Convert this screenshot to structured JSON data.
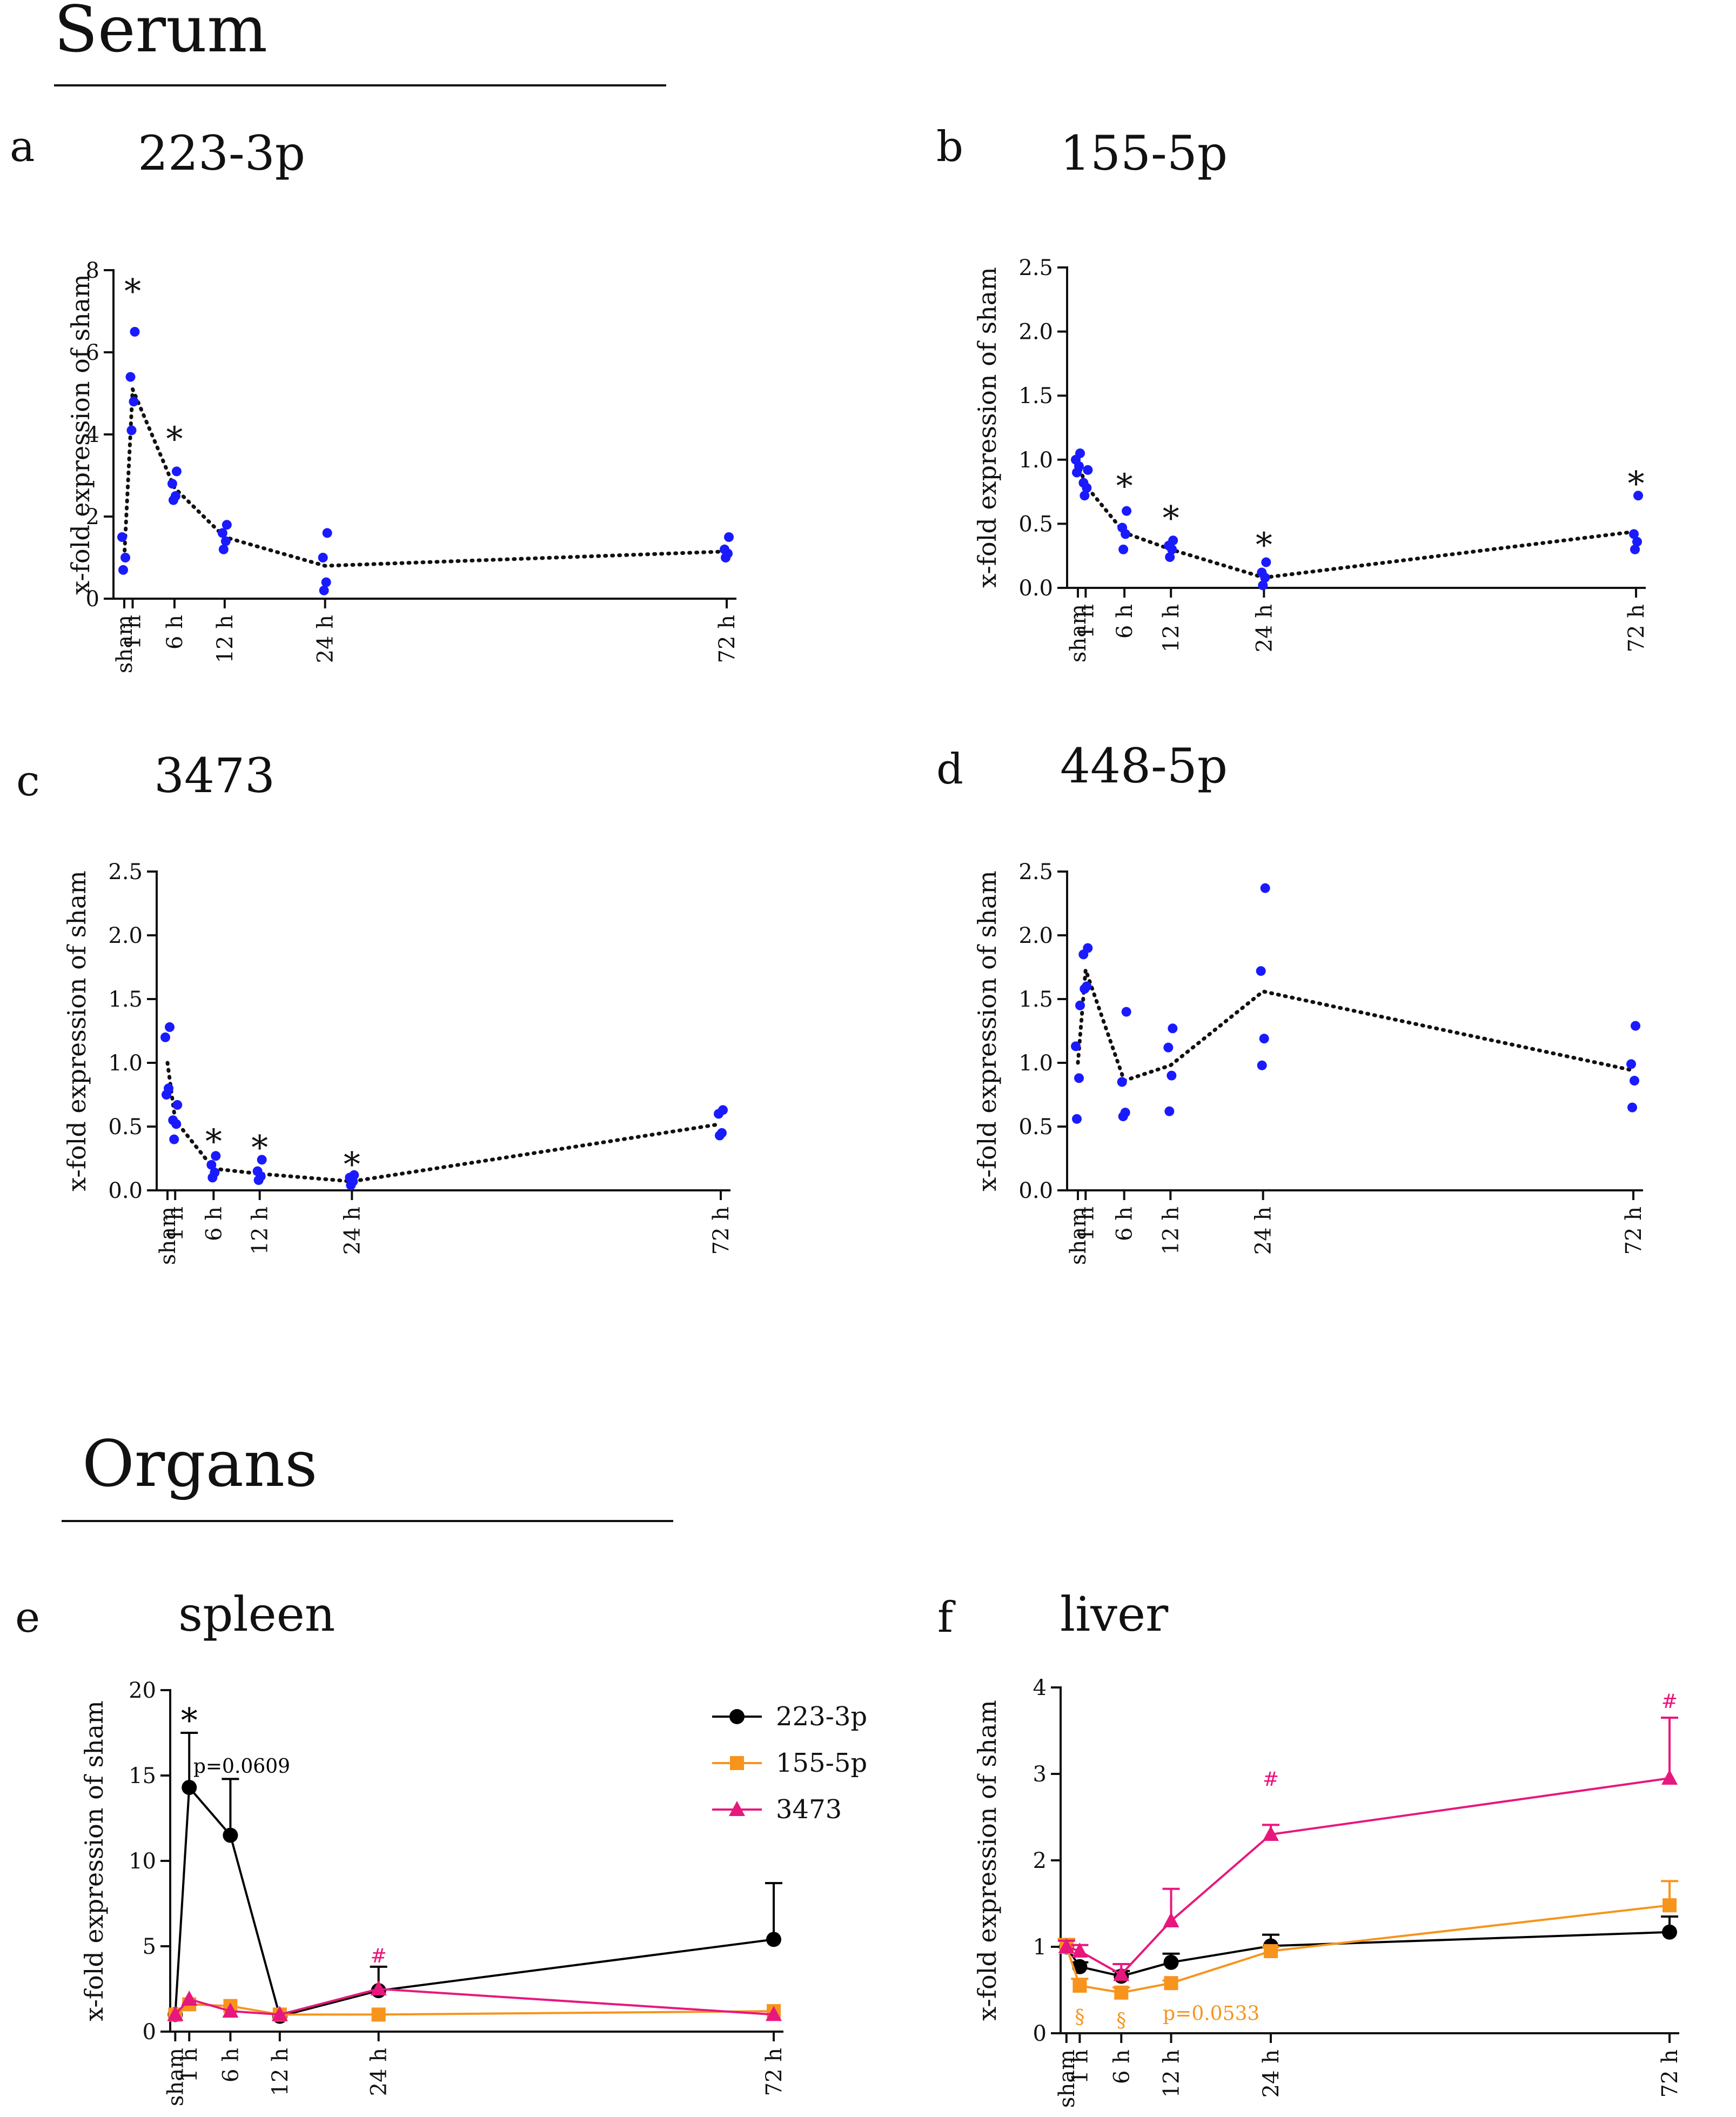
{
  "sections": [
    {
      "title": "Serum"
    },
    {
      "title": "Organs"
    }
  ],
  "x_categories": [
    "sham",
    "1 h",
    "6 h",
    "12 h",
    "24 h",
    "72 h"
  ],
  "x_hours": [
    0,
    1,
    6,
    12,
    24,
    72
  ],
  "colors": {
    "blue": "#1a1aff",
    "black": "#000000",
    "orange": "#f7941d",
    "pink": "#e8177d",
    "axis": "#111111"
  },
  "chart_data": [
    {
      "id": "a",
      "panel_letter": "a",
      "title": "223-3p",
      "type": "scatter",
      "ylabel": "x-fold expression of sham",
      "ylim": [
        0,
        8
      ],
      "yticks": [
        "0",
        "2",
        "4",
        "6",
        "8"
      ],
      "points": [
        {
          "x": 0,
          "values": [
            0.7,
            1.0,
            1.5
          ]
        },
        {
          "x": 1,
          "values": [
            4.1,
            4.8,
            5.4,
            6.5
          ]
        },
        {
          "x": 6,
          "values": [
            2.4,
            2.5,
            2.8,
            3.1
          ]
        },
        {
          "x": 12,
          "values": [
            1.2,
            1.4,
            1.6,
            1.8
          ]
        },
        {
          "x": 24,
          "values": [
            0.2,
            0.4,
            1.0,
            1.6
          ]
        },
        {
          "x": 72,
          "values": [
            1.0,
            1.1,
            1.2,
            1.5
          ]
        }
      ],
      "mean_line": [
        1.0,
        5.1,
        2.7,
        1.5,
        0.8,
        1.15
      ],
      "annotations": [
        {
          "x": 1,
          "y": 7.6,
          "text": "*"
        },
        {
          "x": 6,
          "y": 4.0,
          "text": "*"
        }
      ]
    },
    {
      "id": "b",
      "panel_letter": "b",
      "title": "155-5p",
      "type": "scatter",
      "ylabel": "x-fold expression of sham",
      "ylim": [
        0,
        2.5
      ],
      "yticks": [
        "0.0",
        "0.5",
        "1.0",
        "1.5",
        "2.0",
        "2.5"
      ],
      "points": [
        {
          "x": 0,
          "values": [
            0.9,
            0.95,
            1.0,
            1.05
          ]
        },
        {
          "x": 1,
          "values": [
            0.72,
            0.78,
            0.82,
            0.92
          ]
        },
        {
          "x": 6,
          "values": [
            0.3,
            0.42,
            0.47,
            0.6
          ]
        },
        {
          "x": 12,
          "values": [
            0.24,
            0.3,
            0.33,
            0.37
          ]
        },
        {
          "x": 24,
          "values": [
            0.02,
            0.08,
            0.12,
            0.2
          ]
        },
        {
          "x": 72,
          "values": [
            0.3,
            0.36,
            0.42,
            0.72
          ]
        }
      ],
      "mean_line": [
        0.98,
        0.8,
        0.43,
        0.3,
        0.08,
        0.44
      ],
      "annotations": [
        {
          "x": 6,
          "y": 0.83,
          "text": "*"
        },
        {
          "x": 12,
          "y": 0.58,
          "text": "*"
        },
        {
          "x": 24,
          "y": 0.37,
          "text": "*"
        },
        {
          "x": 72,
          "y": 0.85,
          "text": "*"
        }
      ]
    },
    {
      "id": "c",
      "panel_letter": "c",
      "title": "3473",
      "type": "scatter",
      "ylabel": "x-fold expression of sham",
      "ylim": [
        0,
        2.5
      ],
      "yticks": [
        "0.0",
        "0.5",
        "1.0",
        "1.5",
        "2.0",
        "2.5"
      ],
      "points": [
        {
          "x": 0,
          "values": [
            0.75,
            0.8,
            1.2,
            1.28
          ]
        },
        {
          "x": 1,
          "values": [
            0.4,
            0.52,
            0.55,
            0.67
          ]
        },
        {
          "x": 6,
          "values": [
            0.1,
            0.14,
            0.2,
            0.27
          ]
        },
        {
          "x": 12,
          "values": [
            0.08,
            0.11,
            0.15,
            0.24
          ]
        },
        {
          "x": 24,
          "values": [
            0.04,
            0.07,
            0.1,
            0.12
          ]
        },
        {
          "x": 72,
          "values": [
            0.43,
            0.45,
            0.6,
            0.63
          ]
        }
      ],
      "mean_line": [
        1.0,
        0.55,
        0.17,
        0.13,
        0.07,
        0.52
      ],
      "annotations": [
        {
          "x": 6,
          "y": 0.42,
          "text": "*"
        },
        {
          "x": 12,
          "y": 0.37,
          "text": "*"
        },
        {
          "x": 24,
          "y": 0.24,
          "text": "*"
        }
      ]
    },
    {
      "id": "d",
      "panel_letter": "d",
      "title": "448-5p",
      "type": "scatter",
      "ylabel": "x-fold expression of sham",
      "ylim": [
        0,
        2.5
      ],
      "yticks": [
        "0.0",
        "0.5",
        "1.0",
        "1.5",
        "2.0",
        "2.5"
      ],
      "points": [
        {
          "x": 0,
          "values": [
            0.56,
            0.88,
            1.13,
            1.45
          ]
        },
        {
          "x": 1,
          "values": [
            1.58,
            1.6,
            1.85,
            1.9
          ]
        },
        {
          "x": 6,
          "values": [
            0.58,
            0.61,
            0.85,
            1.4
          ]
        },
        {
          "x": 12,
          "values": [
            0.62,
            0.9,
            1.12,
            1.27
          ]
        },
        {
          "x": 24,
          "values": [
            0.98,
            1.19,
            1.72,
            2.37
          ]
        },
        {
          "x": 72,
          "values": [
            0.65,
            0.86,
            0.99,
            1.29
          ]
        }
      ],
      "mean_line": [
        1.0,
        1.73,
        0.86,
        0.98,
        1.56,
        0.94
      ],
      "annotations": []
    },
    {
      "id": "e",
      "panel_letter": "e",
      "title": "spleen",
      "type": "line",
      "ylabel": "x-fold expression of sham",
      "ylim": [
        0,
        20
      ],
      "yticks": [
        "0",
        "5",
        "10",
        "15",
        "20"
      ],
      "legend": {
        "placement": "top-right",
        "entries": [
          "223-3p",
          "155-5p",
          "3473"
        ]
      },
      "series": [
        {
          "name": "223-3p",
          "color": "black",
          "marker": "circle",
          "values": [
            1.0,
            14.3,
            11.5,
            0.9,
            2.4,
            5.4
          ],
          "error": [
            0,
            3.2,
            3.3,
            0,
            1.4,
            3.3
          ]
        },
        {
          "name": "155-5p",
          "color": "orange",
          "marker": "square",
          "values": [
            1.0,
            1.6,
            1.5,
            1.0,
            1.0,
            1.2
          ],
          "error": [
            0,
            0,
            0,
            0,
            0,
            0
          ]
        },
        {
          "name": "3473",
          "color": "pink",
          "marker": "triangle",
          "values": [
            1.0,
            1.9,
            1.2,
            1.0,
            2.5,
            1.0
          ],
          "error": [
            0,
            0,
            0,
            0,
            0,
            0
          ]
        }
      ],
      "annotations": [
        {
          "x": 1,
          "y": 18.5,
          "text": "*",
          "color": "black",
          "size": "big"
        },
        {
          "x": 1.5,
          "y": 15.6,
          "text": "p=0.0609",
          "color": "black",
          "size": "small"
        },
        {
          "x": 24,
          "y": 4.5,
          "text": "#",
          "color": "pink",
          "size": "small"
        }
      ]
    },
    {
      "id": "f",
      "panel_letter": "f",
      "title": "liver",
      "type": "line",
      "ylabel": "x-fold expression of sham",
      "ylim": [
        0,
        4
      ],
      "yticks": [
        "0",
        "1",
        "2",
        "3",
        "4"
      ],
      "series": [
        {
          "name": "223-3p",
          "color": "black",
          "marker": "circle",
          "values": [
            1.0,
            0.77,
            0.66,
            0.82,
            1.01,
            1.17
          ],
          "error": [
            0.09,
            0.05,
            0.06,
            0.1,
            0.13,
            0.18
          ]
        },
        {
          "name": "155-5p",
          "color": "orange",
          "marker": "square",
          "values": [
            1.0,
            0.55,
            0.47,
            0.58,
            0.95,
            1.48
          ],
          "error": [
            0.09,
            0.08,
            0.06,
            0.03,
            0.05,
            0.28
          ]
        },
        {
          "name": "3473",
          "color": "pink",
          "marker": "triangle",
          "values": [
            1.0,
            0.95,
            0.68,
            1.3,
            2.3,
            2.95
          ],
          "error": [
            0.07,
            0.07,
            0.12,
            0.37,
            0.11,
            0.7
          ]
        }
      ],
      "annotations": [
        {
          "x": 1,
          "y": 0.2,
          "text": "§",
          "color": "orange",
          "size": "small"
        },
        {
          "x": 6,
          "y": 0.16,
          "text": "§",
          "color": "orange",
          "size": "small"
        },
        {
          "x": 11,
          "y": 0.24,
          "text": "p=0.0533",
          "color": "orange",
          "size": "small"
        },
        {
          "x": 24,
          "y": 2.95,
          "text": "#",
          "color": "pink",
          "size": "small"
        },
        {
          "x": 72,
          "y": 3.85,
          "text": "#",
          "color": "pink",
          "size": "small"
        }
      ]
    }
  ]
}
